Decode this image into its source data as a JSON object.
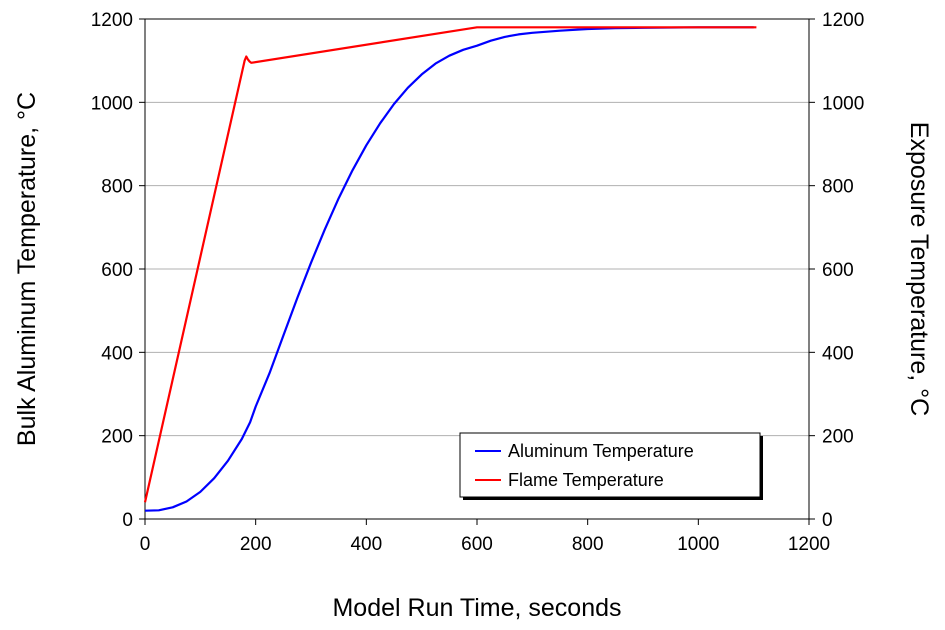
{
  "chart_data": {
    "type": "line",
    "xlabel": "Model Run Time, seconds",
    "ylabel_left": "Bulk Aluminum Temperature, °C",
    "ylabel_right": "Exposure Temperature, °C",
    "xlim": [
      0,
      1200
    ],
    "ylim_left": [
      0,
      1200
    ],
    "ylim_right": [
      0,
      1200
    ],
    "x_ticks": [
      "0",
      "200",
      "400",
      "600",
      "800",
      "1000",
      "1200"
    ],
    "y_ticks_left": [
      "0",
      "200",
      "400",
      "600",
      "800",
      "1000",
      "1200"
    ],
    "y_ticks_right": [
      "0",
      "200",
      "400",
      "600",
      "800",
      "1000",
      "1200"
    ],
    "grid": "horizontal",
    "legend_position": "bottom-right",
    "series": [
      {
        "name": "Aluminum Temperature",
        "color": "#0000ff",
        "axis": "left",
        "points": [
          [
            0,
            20
          ],
          [
            25,
            21
          ],
          [
            50,
            28
          ],
          [
            75,
            42
          ],
          [
            100,
            65
          ],
          [
            125,
            98
          ],
          [
            150,
            140
          ],
          [
            175,
            192
          ],
          [
            190,
            232
          ],
          [
            200,
            270
          ],
          [
            225,
            350
          ],
          [
            250,
            440
          ],
          [
            275,
            530
          ],
          [
            300,
            615
          ],
          [
            325,
            695
          ],
          [
            350,
            770
          ],
          [
            375,
            837
          ],
          [
            400,
            897
          ],
          [
            425,
            950
          ],
          [
            450,
            996
          ],
          [
            475,
            1035
          ],
          [
            500,
            1067
          ],
          [
            525,
            1093
          ],
          [
            550,
            1112
          ],
          [
            575,
            1126
          ],
          [
            600,
            1136
          ],
          [
            625,
            1148
          ],
          [
            650,
            1157
          ],
          [
            675,
            1163
          ],
          [
            700,
            1167
          ],
          [
            750,
            1172
          ],
          [
            800,
            1176
          ],
          [
            850,
            1178
          ],
          [
            900,
            1179
          ],
          [
            1000,
            1180
          ],
          [
            1100,
            1180
          ]
        ]
      },
      {
        "name": "Flame Temperature",
        "color": "#ff0000",
        "axis": "right",
        "points": [
          [
            0,
            40
          ],
          [
            180,
            1100
          ],
          [
            183,
            1110
          ],
          [
            186,
            1103
          ],
          [
            189,
            1098
          ],
          [
            192,
            1095
          ],
          [
            600,
            1180
          ],
          [
            1105,
            1180
          ]
        ]
      }
    ]
  }
}
